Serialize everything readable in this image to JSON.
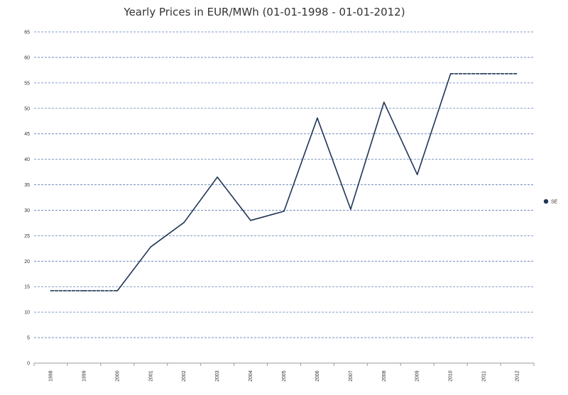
{
  "chart_data": {
    "type": "line",
    "title": "Yearly Prices in EUR/MWh (01-01-1998 - 01-01-2012)",
    "xlabel": "",
    "ylabel": "",
    "categories": [
      "1998",
      "1999",
      "2000",
      "2001",
      "2002",
      "2003",
      "2004",
      "2005",
      "2006",
      "2007",
      "2008",
      "2009",
      "2010",
      "2011",
      "2012"
    ],
    "ylim": [
      0,
      65
    ],
    "yticks": [
      0,
      5,
      10,
      15,
      20,
      25,
      30,
      35,
      40,
      45,
      50,
      55,
      60,
      65
    ],
    "grid": true,
    "legend_position": "right",
    "series": [
      {
        "name": "SE",
        "color": "#1f3557",
        "values": [
          14.2,
          14.2,
          14.2,
          22.8,
          27.6,
          36.5,
          28.0,
          29.8,
          48.1,
          30.2,
          51.2,
          37.0,
          56.8,
          56.8,
          56.8
        ],
        "dashed_segments": [
          [
            0,
            2
          ],
          [
            12,
            14
          ]
        ]
      }
    ],
    "grid_color": "#5b7cb3",
    "axis_color": "#999999"
  }
}
